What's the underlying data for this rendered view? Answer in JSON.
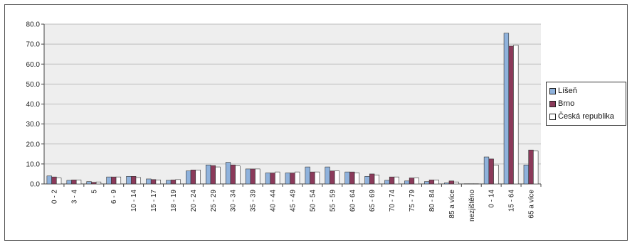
{
  "chart_data": {
    "type": "bar",
    "categories": [
      "0 - 2",
      "3 - 4",
      "5",
      "6 - 9",
      "10 - 14",
      "15 - 17",
      "18 - 19",
      "20 - 24",
      "25 - 29",
      "30 - 34",
      "35 - 39",
      "40 - 44",
      "45 - 49",
      "50 - 54",
      "55 - 59",
      "60 - 64",
      "65 - 69",
      "70 - 74",
      "75 - 79",
      "80 - 84",
      "85 a více",
      "nezjištěno",
      "0 - 14",
      "15 - 64",
      "65 a více"
    ],
    "series": [
      {
        "name": "Líšeň",
        "color": "#8fb2dc",
        "values": [
          4.0,
          1.8,
          1.2,
          3.5,
          3.8,
          2.5,
          1.8,
          6.5,
          9.5,
          10.8,
          7.5,
          5.5,
          5.5,
          8.5,
          8.5,
          6.0,
          3.8,
          1.8,
          1.5,
          1.2,
          0.5,
          0.1,
          13.5,
          75.5,
          9.5
        ]
      },
      {
        "name": "Brno",
        "color": "#8b3a5a",
        "values": [
          3.5,
          2.0,
          0.8,
          3.5,
          3.8,
          2.2,
          2.0,
          7.0,
          9.2,
          9.5,
          7.5,
          5.5,
          5.5,
          6.0,
          6.5,
          6.0,
          5.0,
          3.5,
          3.0,
          2.0,
          1.5,
          0.1,
          12.5,
          69.0,
          17.0
        ]
      },
      {
        "name": "Česká republika",
        "color": "#ffffff",
        "values": [
          3.0,
          2.0,
          1.0,
          3.5,
          3.2,
          2.0,
          2.2,
          7.0,
          8.5,
          9.0,
          7.5,
          6.0,
          6.0,
          6.0,
          6.5,
          5.5,
          4.5,
          3.5,
          3.0,
          2.0,
          1.0,
          0.1,
          9.5,
          69.5,
          16.5
        ]
      }
    ],
    "ylim": [
      0,
      80
    ],
    "yticks": [
      "0.0",
      "10.0",
      "20.0",
      "30.0",
      "40.0",
      "50.0",
      "60.0",
      "70.0",
      "80.0"
    ],
    "grid": true,
    "legend_position": "right",
    "plot_background": "#eeeeee"
  }
}
